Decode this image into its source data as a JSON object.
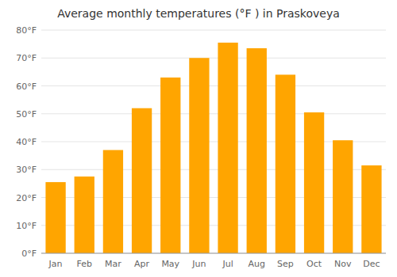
{
  "chart_data": {
    "type": "bar",
    "title": "Average monthly temperatures (°F ) in Praskoveya",
    "categories": [
      "Jan",
      "Feb",
      "Mar",
      "Apr",
      "May",
      "Jun",
      "Jul",
      "Aug",
      "Sep",
      "Oct",
      "Nov",
      "Dec"
    ],
    "values": [
      25.5,
      27.5,
      37.0,
      52.0,
      63.0,
      70.0,
      75.5,
      73.5,
      64.0,
      50.5,
      40.5,
      31.5
    ],
    "color": "#FFA500",
    "ylim": [
      0,
      80
    ],
    "yticks": [
      {
        "value": 0,
        "label": "0°F"
      },
      {
        "value": 10,
        "label": "10°F"
      },
      {
        "value": 20,
        "label": "20°F"
      },
      {
        "value": 30,
        "label": "30°F"
      },
      {
        "value": 40,
        "label": "40°F"
      },
      {
        "value": 50,
        "label": "50°F"
      },
      {
        "value": 60,
        "label": "60°F"
      },
      {
        "value": 70,
        "label": "70°F"
      },
      {
        "value": 80,
        "label": "80°F"
      }
    ],
    "grid": true
  }
}
